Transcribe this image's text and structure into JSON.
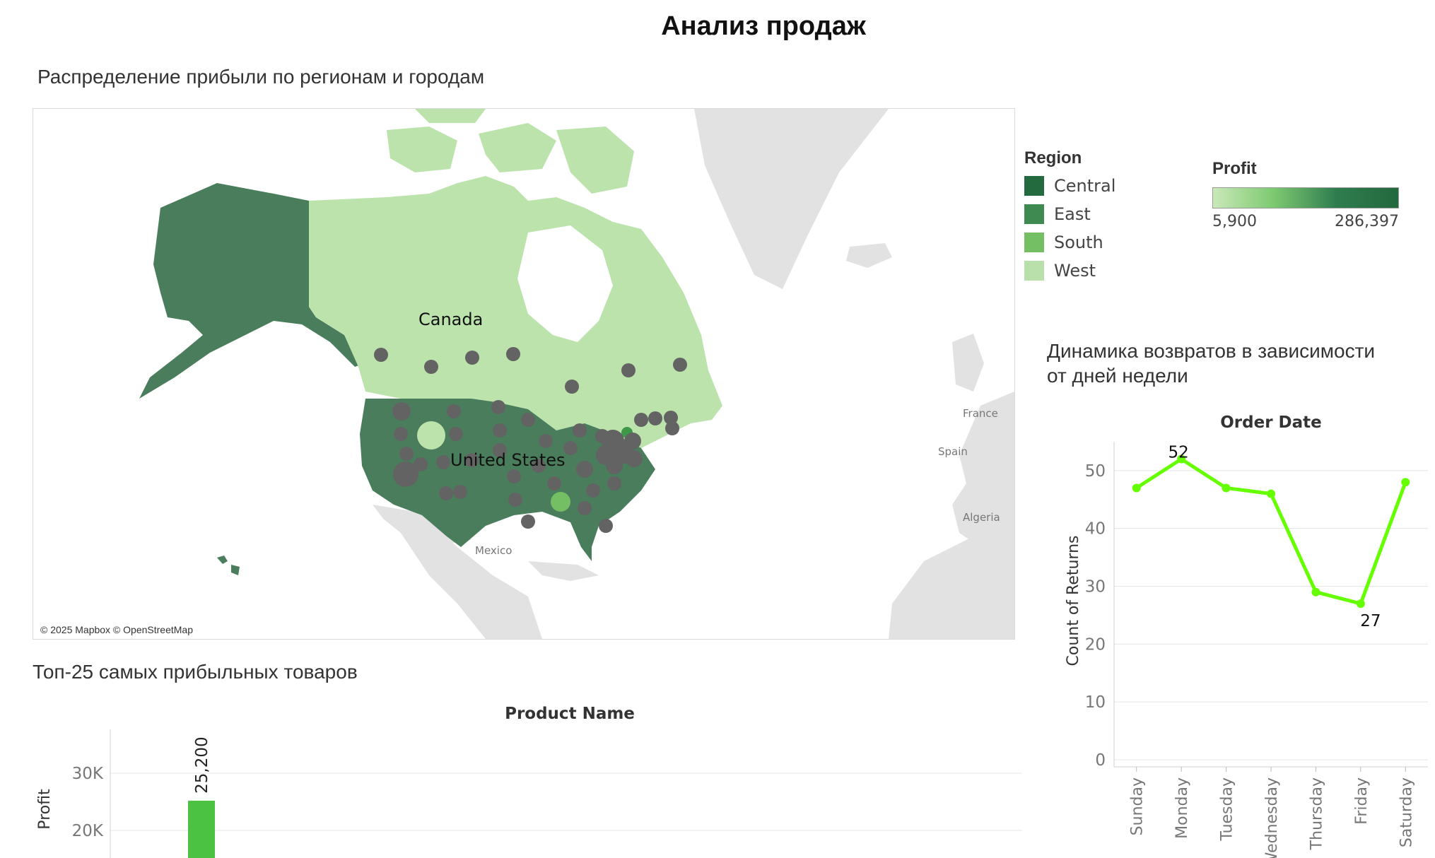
{
  "dashboard": {
    "title": "Анализ продаж"
  },
  "map": {
    "title": "Распределение прибыли по регионам и городам",
    "labels": {
      "canada": "Canada",
      "united_states": "United States",
      "mexico": "Mexico",
      "france": "France",
      "spain": "Spain",
      "algeria": "Algeria"
    },
    "attribution": "© 2025 Mapbox © OpenStreetMap"
  },
  "region_legend": {
    "title": "Region",
    "items": [
      {
        "label": "Central",
        "color": "#236b3e"
      },
      {
        "label": "East",
        "color": "#3e8a50"
      },
      {
        "label": "South",
        "color": "#74bf64"
      },
      {
        "label": "West",
        "color": "#b9e0ab"
      }
    ]
  },
  "profit_legend": {
    "title": "Profit",
    "min": "5,900",
    "max": "286,397"
  },
  "returns_section": {
    "title_line1": "Динамика возвратов в зависимости",
    "title_line2": "от дней недели"
  },
  "products_section": {
    "title": "Топ-25 самых прибыльных товаров"
  },
  "chart_data": [
    {
      "type": "line",
      "title": "Order Date",
      "xlabel": "Order Date",
      "ylabel": "Count of Returns",
      "categories": [
        "Sunday",
        "Monday",
        "Tuesday",
        "Wednesday",
        "Thursday",
        "Friday",
        "Saturday"
      ],
      "series": [
        {
          "values": [
            47,
            52,
            47,
            46,
            29,
            27,
            48
          ],
          "color": "#66ff00"
        }
      ],
      "data_labels": [
        {
          "index": 1,
          "text": "52"
        },
        {
          "index": 5,
          "text": "27"
        }
      ],
      "yticks": [
        0,
        10,
        20,
        30,
        40,
        50
      ],
      "ylim": [
        0,
        55
      ],
      "grid": true
    },
    {
      "type": "bar",
      "title": "Product Name",
      "xlabel": "Product Name",
      "ylabel": "Profit",
      "values": [
        25200
      ],
      "data_labels": [
        "25,200"
      ],
      "yticks": [
        {
          "value": 20000,
          "label": "20K"
        },
        {
          "value": 30000,
          "label": "30K"
        }
      ],
      "bar_color": "#4cc243",
      "grid": true
    }
  ]
}
